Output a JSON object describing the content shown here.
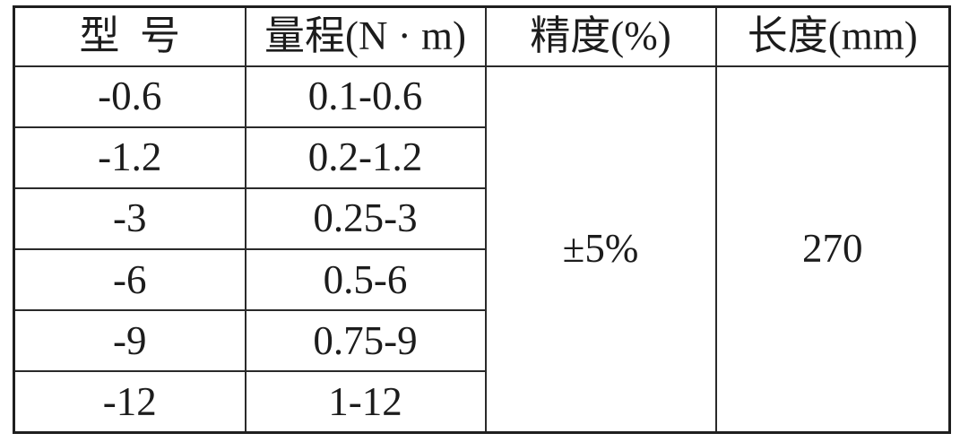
{
  "table": {
    "headers": {
      "model": "型 号",
      "range": "量程(N · m)",
      "accuracy": "精度(%)",
      "length": "长度(mm)"
    },
    "rows": [
      {
        "model": "-0.6",
        "range": "0.1-0.6"
      },
      {
        "model": "-1.2",
        "range": "0.2-1.2"
      },
      {
        "model": "-3",
        "range": "0.25-3"
      },
      {
        "model": "-6",
        "range": "0.5-6"
      },
      {
        "model": "-9",
        "range": "0.75-9"
      },
      {
        "model": "-12",
        "range": "1-12"
      }
    ],
    "merged": {
      "accuracy": "±5%",
      "length": "270"
    }
  },
  "colors": {
    "border_outer": "#1f1f1f",
    "border_inner": "#2a2a2a",
    "text": "#1c1c1c",
    "background": "#ffffff"
  }
}
